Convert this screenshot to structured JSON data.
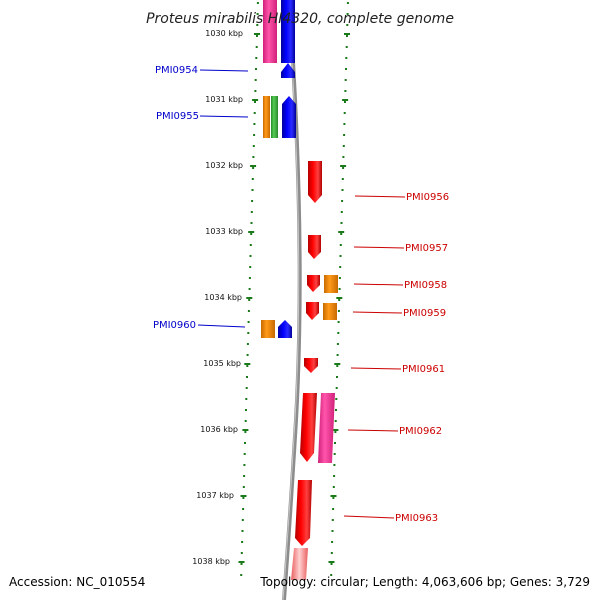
{
  "title": "Proteus mirabilis HI4320, complete genome",
  "footer": {
    "accession": "Accession: NC_010554",
    "summary": "Topology: circular; Length: 4,063,606 bp; Genes: 3,729"
  },
  "scale": {
    "unit": "kbp",
    "labels": [
      "1030 kbp",
      "1031 kbp",
      "1032 kbp",
      "1033 kbp",
      "1034 kbp",
      "1035 kbp",
      "1036 kbp",
      "1037 kbp",
      "1038 kbp"
    ]
  },
  "colors": {
    "backbone": "#8c8c8c",
    "tick": "#1a7a1a",
    "forward_label": "#0000cc",
    "reverse_label": "#cc0000",
    "red": "#ff0000",
    "blue": "#0000ff",
    "orange": "#ff8c00",
    "green": "#33aa33",
    "magenta": "#ff3399"
  },
  "gene_labels": {
    "forward": [
      "PMI0954",
      "PMI0955",
      "PMI0960"
    ],
    "reverse": [
      "PMI0956",
      "PMI0957",
      "PMI0958",
      "PMI0959",
      "PMI0961",
      "PMI0962",
      "PMI0963"
    ]
  }
}
